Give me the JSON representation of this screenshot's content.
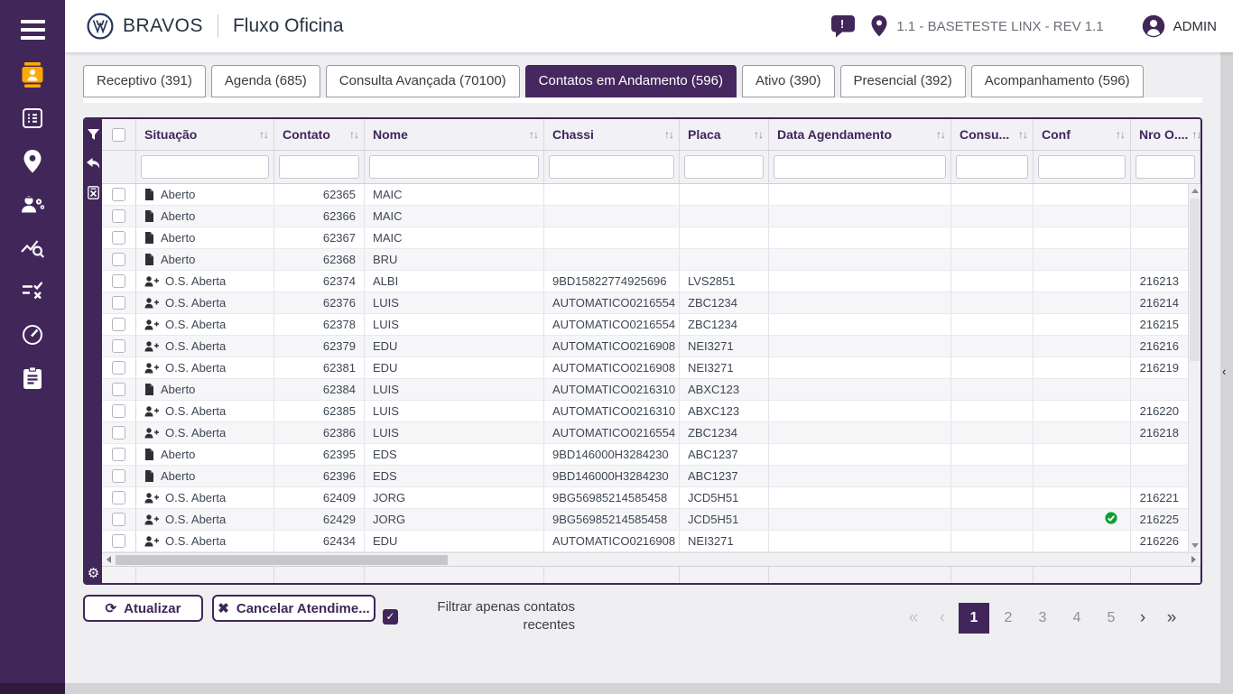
{
  "header": {
    "brand": "BRAVOS",
    "module": "Fluxo Oficina",
    "alert_badge": "!",
    "environment": "1.1 - BASETESTE LINX - REV 1.1",
    "user": "ADMIN"
  },
  "sidebar": {
    "items": [
      {
        "icon": "hamburger-menu-icon",
        "active": false
      },
      {
        "icon": "contact-badge-icon",
        "active": true,
        "accent_color": "#ffaa00"
      },
      {
        "icon": "form-list-icon",
        "active": false
      },
      {
        "icon": "location-pin-icon",
        "active": false
      },
      {
        "icon": "mechanic-icon",
        "active": false
      },
      {
        "icon": "chart-search-icon",
        "active": false
      },
      {
        "icon": "checklist-icon",
        "active": false
      },
      {
        "icon": "speedometer-icon",
        "active": false
      },
      {
        "icon": "clipboard-icon",
        "active": false
      }
    ]
  },
  "tabs": [
    {
      "label": "Receptivo (391)",
      "active": false
    },
    {
      "label": "Agenda (685)",
      "active": false
    },
    {
      "label": "Consulta Avançada (70100)",
      "active": false
    },
    {
      "label": "Contatos em Andamento (596)",
      "active": true
    },
    {
      "label": "Ativo (390)",
      "active": false
    },
    {
      "label": "Presencial (392)",
      "active": false
    },
    {
      "label": "Acompanhamento (596)",
      "active": false
    }
  ],
  "grid_toolbar": {
    "icons": [
      "filter-icon",
      "undo-icon",
      "excel-export-icon",
      "gear-icon"
    ]
  },
  "table": {
    "columns": [
      {
        "key": "situacao",
        "label": "Situação"
      },
      {
        "key": "contato",
        "label": "Contato"
      },
      {
        "key": "nome",
        "label": "Nome"
      },
      {
        "key": "chassi",
        "label": "Chassi"
      },
      {
        "key": "placa",
        "label": "Placa"
      },
      {
        "key": "data_agendamento",
        "label": "Data Agendamento"
      },
      {
        "key": "consu",
        "label": "Consu..."
      },
      {
        "key": "conf",
        "label": "Conf"
      },
      {
        "key": "nro_os",
        "label": "Nro O...."
      }
    ],
    "rows": [
      {
        "icon": "document-icon",
        "situacao": "Aberto",
        "contato": "62365",
        "nome": "MAIC",
        "chassi": "",
        "placa": "",
        "data_agendamento": "",
        "consu": "",
        "conf": false,
        "nro_os": ""
      },
      {
        "icon": "document-icon",
        "situacao": "Aberto",
        "contato": "62366",
        "nome": "MAIC",
        "chassi": "",
        "placa": "",
        "data_agendamento": "",
        "consu": "",
        "conf": false,
        "nro_os": ""
      },
      {
        "icon": "document-icon",
        "situacao": "Aberto",
        "contato": "62367",
        "nome": "MAIC",
        "chassi": "",
        "placa": "",
        "data_agendamento": "",
        "consu": "",
        "conf": false,
        "nro_os": ""
      },
      {
        "icon": "document-icon",
        "situacao": "Aberto",
        "contato": "62368",
        "nome": "BRU",
        "chassi": "",
        "placa": "",
        "data_agendamento": "",
        "consu": "",
        "conf": false,
        "nro_os": ""
      },
      {
        "icon": "person-add-icon",
        "situacao": "O.S. Aberta",
        "contato": "62374",
        "nome": "ALBI",
        "chassi": "9BD15822774925696",
        "placa": "LVS2851",
        "data_agendamento": "",
        "consu": "",
        "conf": false,
        "nro_os": "216213"
      },
      {
        "icon": "person-add-icon",
        "situacao": "O.S. Aberta",
        "contato": "62376",
        "nome": "LUIS",
        "chassi": "AUTOMATICO0216554",
        "placa": "ZBC1234",
        "data_agendamento": "",
        "consu": "",
        "conf": false,
        "nro_os": "216214"
      },
      {
        "icon": "person-add-icon",
        "situacao": "O.S. Aberta",
        "contato": "62378",
        "nome": "LUIS",
        "chassi": "AUTOMATICO0216554",
        "placa": "ZBC1234",
        "data_agendamento": "",
        "consu": "",
        "conf": false,
        "nro_os": "216215"
      },
      {
        "icon": "person-add-icon",
        "situacao": "O.S. Aberta",
        "contato": "62379",
        "nome": "EDU",
        "chassi": "AUTOMATICO0216908",
        "placa": "NEI3271",
        "data_agendamento": "",
        "consu": "",
        "conf": false,
        "nro_os": "216216"
      },
      {
        "icon": "person-add-icon",
        "situacao": "O.S. Aberta",
        "contato": "62381",
        "nome": "EDU",
        "chassi": "AUTOMATICO0216908",
        "placa": "NEI3271",
        "data_agendamento": "",
        "consu": "",
        "conf": false,
        "nro_os": "216219"
      },
      {
        "icon": "document-icon",
        "situacao": "Aberto",
        "contato": "62384",
        "nome": "LUIS",
        "chassi": "AUTOMATICO0216310",
        "placa": "ABXC123",
        "data_agendamento": "",
        "consu": "",
        "conf": false,
        "nro_os": ""
      },
      {
        "icon": "person-add-icon",
        "situacao": "O.S. Aberta",
        "contato": "62385",
        "nome": "LUIS",
        "chassi": "AUTOMATICO0216310",
        "placa": "ABXC123",
        "data_agendamento": "",
        "consu": "",
        "conf": false,
        "nro_os": "216220"
      },
      {
        "icon": "person-add-icon",
        "situacao": "O.S. Aberta",
        "contato": "62386",
        "nome": "LUIS",
        "chassi": "AUTOMATICO0216554",
        "placa": "ZBC1234",
        "data_agendamento": "",
        "consu": "",
        "conf": false,
        "nro_os": "216218"
      },
      {
        "icon": "document-icon",
        "situacao": "Aberto",
        "contato": "62395",
        "nome": "EDS",
        "chassi": "9BD146000H3284230",
        "placa": "ABC1237",
        "data_agendamento": "",
        "consu": "",
        "conf": false,
        "nro_os": ""
      },
      {
        "icon": "document-icon",
        "situacao": "Aberto",
        "contato": "62396",
        "nome": "EDS",
        "chassi": "9BD146000H3284230",
        "placa": "ABC1237",
        "data_agendamento": "",
        "consu": "",
        "conf": false,
        "nro_os": ""
      },
      {
        "icon": "person-add-icon",
        "situacao": "O.S. Aberta",
        "contato": "62409",
        "nome": "JORG",
        "chassi": "9BG56985214585458",
        "placa": "JCD5H51",
        "data_agendamento": "",
        "consu": "",
        "conf": false,
        "nro_os": "216221"
      },
      {
        "icon": "person-add-icon",
        "situacao": "O.S. Aberta",
        "contato": "62429",
        "nome": "JORG",
        "chassi": "9BG56985214585458",
        "placa": "JCD5H51",
        "data_agendamento": "",
        "consu": "",
        "conf": true,
        "nro_os": "216225"
      },
      {
        "icon": "person-add-icon",
        "situacao": "O.S. Aberta",
        "contato": "62434",
        "nome": "EDU",
        "chassi": "AUTOMATICO0216908",
        "placa": "NEI3271",
        "data_agendamento": "",
        "consu": "",
        "conf": false,
        "nro_os": "216226"
      }
    ]
  },
  "actions": {
    "refresh_label": "Atualizar",
    "cancel_label": "Cancelar Atendime...",
    "filter_recent_label": "Filtrar apenas contatos recentes",
    "filter_recent_checked": true,
    "check_glyph": "✓"
  },
  "pagination": {
    "first": "«",
    "prev": "‹",
    "pages": [
      "1",
      "2",
      "3",
      "4",
      "5"
    ],
    "active": "1",
    "next": "›",
    "last": "»"
  },
  "colors": {
    "brand_purple": "#402659",
    "accent_amber": "#ffaa00",
    "confirmed_green": "#0ca131"
  }
}
